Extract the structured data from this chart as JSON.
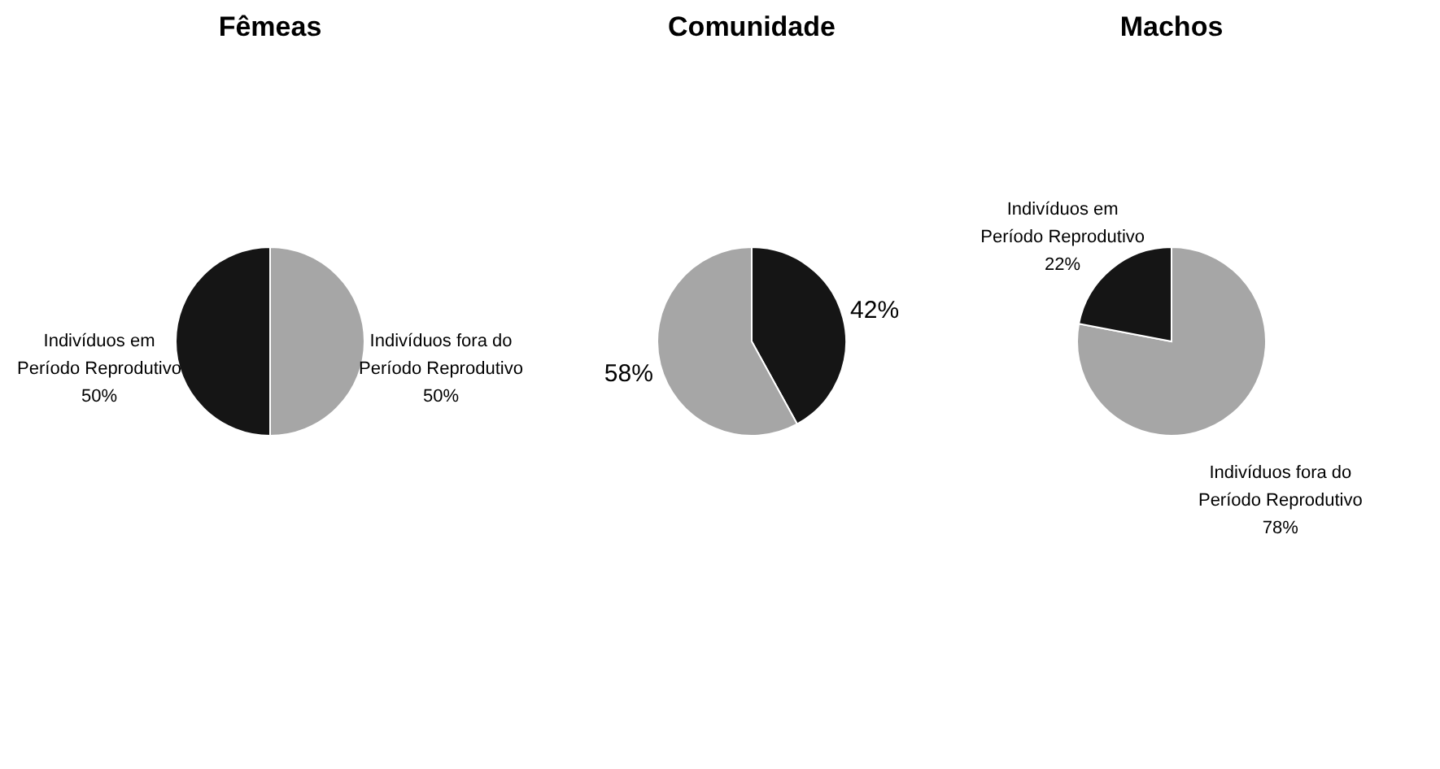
{
  "chart_data": [
    {
      "type": "pie",
      "title": "Fêmeas",
      "categories": [
        "Indivíduos fora do Período Reprodutivo",
        "Indivíduos em Período Reprodutivo"
      ],
      "values": [
        50,
        50
      ],
      "colors": [
        "#a6a6a6",
        "#151515"
      ],
      "value_labels": [
        "50%",
        "50%"
      ]
    },
    {
      "type": "pie",
      "title": "Comunidade",
      "categories": [
        null,
        null
      ],
      "values": [
        42,
        58
      ],
      "colors": [
        "#151515",
        "#a6a6a6"
      ],
      "value_labels": [
        "42%",
        "58%"
      ]
    },
    {
      "type": "pie",
      "title": "Machos",
      "categories": [
        "Indivíduos fora do Período Reprodutivo",
        "Indivíduos em Período Reprodutivo"
      ],
      "values": [
        78,
        22
      ],
      "colors": [
        "#a6a6a6",
        "#151515"
      ],
      "value_labels": [
        "78%",
        "22%"
      ]
    }
  ]
}
